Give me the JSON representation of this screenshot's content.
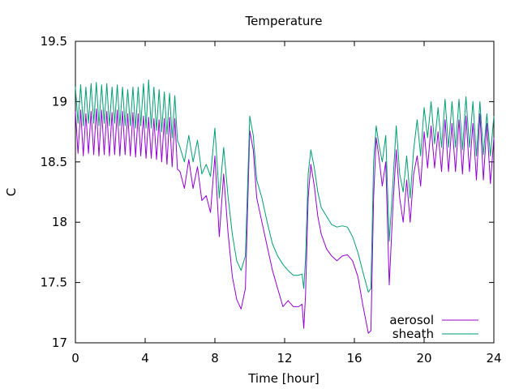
{
  "chart_data": {
    "type": "line",
    "title": "Temperature",
    "xlabel": "Time [hour]",
    "ylabel": "C",
    "xlim": [
      0,
      24
    ],
    "ylim": [
      17,
      19.5
    ],
    "xticks": [
      0,
      4,
      8,
      12,
      16,
      20,
      24
    ],
    "yticks": [
      17,
      17.5,
      18,
      18.5,
      19,
      19.5
    ],
    "ytick_labels": [
      "17",
      "17.5",
      "18",
      "18.5",
      "19",
      "19.5"
    ],
    "grid": false,
    "legend_position": "bottom-right",
    "series": [
      {
        "name": "aerosol",
        "color": "#9400d3",
        "x": [
          0,
          0.15,
          0.3,
          0.45,
          0.6,
          0.75,
          0.9,
          1.05,
          1.2,
          1.35,
          1.5,
          1.65,
          1.8,
          1.95,
          2.1,
          2.25,
          2.4,
          2.55,
          2.7,
          2.85,
          3.0,
          3.15,
          3.3,
          3.45,
          3.6,
          3.75,
          3.9,
          4.05,
          4.2,
          4.35,
          4.5,
          4.65,
          4.8,
          4.95,
          5.1,
          5.25,
          5.4,
          5.55,
          5.7,
          5.85,
          6.0,
          6.25,
          6.5,
          6.75,
          7.0,
          7.25,
          7.5,
          7.75,
          8.0,
          8.25,
          8.5,
          8.75,
          9.0,
          9.25,
          9.5,
          9.75,
          10.0,
          10.2,
          10.4,
          10.7,
          11.0,
          11.3,
          11.6,
          11.9,
          12.2,
          12.5,
          12.8,
          13.0,
          13.1,
          13.2,
          13.35,
          13.5,
          13.7,
          13.9,
          14.1,
          14.4,
          14.7,
          15.0,
          15.3,
          15.6,
          15.9,
          16.2,
          16.5,
          16.8,
          16.95,
          17.1,
          17.25,
          17.4,
          17.6,
          17.8,
          18.0,
          18.2,
          18.4,
          18.6,
          18.8,
          19.0,
          19.2,
          19.4,
          19.6,
          19.8,
          20.0,
          20.2,
          20.4,
          20.6,
          20.8,
          21.0,
          21.2,
          21.4,
          21.6,
          21.8,
          22.0,
          22.2,
          22.4,
          22.6,
          22.8,
          23.0,
          23.2,
          23.4,
          23.6,
          23.8,
          24.0
        ],
        "y": [
          18.92,
          18.57,
          18.93,
          18.55,
          18.9,
          18.57,
          18.92,
          18.56,
          18.94,
          18.55,
          18.93,
          18.56,
          18.92,
          18.55,
          18.91,
          18.56,
          18.93,
          18.55,
          18.92,
          18.56,
          18.9,
          18.55,
          18.91,
          18.54,
          18.9,
          18.55,
          18.88,
          18.53,
          18.87,
          18.53,
          18.86,
          18.52,
          18.85,
          18.5,
          18.86,
          18.48,
          18.87,
          18.46,
          18.86,
          18.44,
          18.42,
          18.28,
          18.52,
          18.28,
          18.46,
          18.18,
          18.22,
          18.08,
          18.55,
          17.88,
          18.4,
          17.92,
          17.55,
          17.36,
          17.28,
          17.45,
          18.76,
          18.6,
          18.2,
          18.0,
          17.8,
          17.6,
          17.45,
          17.3,
          17.35,
          17.3,
          17.3,
          17.32,
          17.12,
          17.4,
          18.2,
          18.48,
          18.3,
          18.05,
          17.9,
          17.78,
          17.72,
          17.68,
          17.72,
          17.73,
          17.68,
          17.55,
          17.3,
          17.08,
          17.1,
          18.2,
          18.7,
          18.55,
          18.3,
          18.5,
          17.48,
          18.1,
          18.6,
          18.2,
          18.0,
          18.35,
          18.0,
          18.4,
          18.55,
          18.3,
          18.75,
          18.45,
          18.8,
          18.45,
          18.75,
          18.42,
          18.85,
          18.42,
          18.82,
          18.42,
          18.85,
          18.4,
          18.88,
          18.42,
          18.82,
          18.35,
          18.9,
          18.35,
          18.82,
          18.32,
          18.7
        ]
      },
      {
        "name": "sheath",
        "color": "#009e73",
        "x": [
          0,
          0.15,
          0.3,
          0.45,
          0.6,
          0.75,
          0.9,
          1.05,
          1.2,
          1.35,
          1.5,
          1.65,
          1.8,
          1.95,
          2.1,
          2.25,
          2.4,
          2.55,
          2.7,
          2.85,
          3.0,
          3.15,
          3.3,
          3.45,
          3.6,
          3.75,
          3.9,
          4.05,
          4.2,
          4.35,
          4.5,
          4.65,
          4.8,
          4.95,
          5.1,
          5.25,
          5.4,
          5.55,
          5.7,
          5.85,
          6.0,
          6.25,
          6.5,
          6.75,
          7.0,
          7.25,
          7.5,
          7.75,
          8.0,
          8.25,
          8.5,
          8.75,
          9.0,
          9.25,
          9.5,
          9.75,
          10.0,
          10.2,
          10.4,
          10.7,
          11.0,
          11.3,
          11.6,
          11.9,
          12.2,
          12.5,
          12.8,
          13.0,
          13.1,
          13.2,
          13.35,
          13.5,
          13.7,
          13.9,
          14.1,
          14.4,
          14.7,
          15.0,
          15.3,
          15.6,
          15.9,
          16.2,
          16.5,
          16.8,
          16.95,
          17.1,
          17.25,
          17.4,
          17.6,
          17.8,
          18.0,
          18.2,
          18.4,
          18.6,
          18.8,
          19.0,
          19.2,
          19.4,
          19.6,
          19.8,
          20.0,
          20.2,
          20.4,
          20.6,
          20.8,
          21.0,
          21.2,
          21.4,
          21.6,
          21.8,
          22.0,
          22.2,
          22.4,
          22.6,
          22.8,
          23.0,
          23.2,
          23.4,
          23.6,
          23.8,
          24.0
        ],
        "y": [
          19.12,
          18.82,
          19.14,
          18.8,
          19.12,
          18.82,
          19.15,
          18.82,
          19.16,
          18.8,
          19.14,
          18.82,
          19.15,
          18.8,
          19.12,
          18.82,
          19.14,
          18.8,
          19.12,
          18.8,
          19.1,
          18.8,
          19.12,
          18.78,
          19.12,
          18.8,
          19.15,
          18.78,
          19.18,
          18.78,
          19.12,
          18.76,
          19.1,
          18.75,
          19.08,
          18.73,
          19.07,
          18.7,
          19.05,
          18.68,
          18.62,
          18.5,
          18.72,
          18.5,
          18.68,
          18.4,
          18.48,
          18.38,
          18.78,
          18.2,
          18.62,
          18.22,
          17.9,
          17.68,
          17.6,
          17.72,
          18.88,
          18.72,
          18.35,
          18.2,
          18.0,
          17.82,
          17.72,
          17.65,
          17.6,
          17.56,
          17.56,
          17.57,
          17.45,
          17.7,
          18.4,
          18.6,
          18.45,
          18.25,
          18.12,
          18.05,
          17.98,
          17.96,
          17.97,
          17.96,
          17.88,
          17.75,
          17.58,
          17.42,
          17.45,
          18.5,
          18.8,
          18.65,
          18.5,
          18.72,
          17.84,
          18.3,
          18.8,
          18.4,
          18.25,
          18.55,
          18.2,
          18.6,
          18.85,
          18.55,
          18.95,
          18.7,
          19.0,
          18.65,
          18.95,
          18.62,
          19.02,
          18.62,
          19.0,
          18.62,
          19.02,
          18.6,
          19.04,
          18.62,
          19.0,
          18.55,
          19.0,
          18.56,
          18.9,
          18.55,
          18.88
        ]
      }
    ]
  }
}
